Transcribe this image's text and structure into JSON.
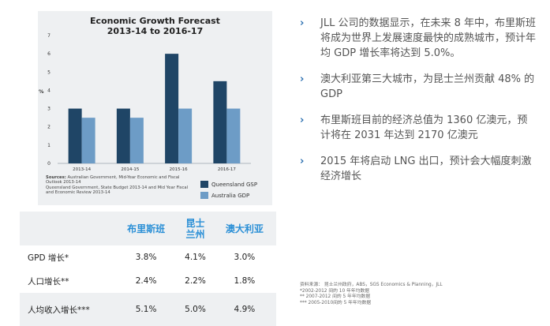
{
  "chart_data": {
    "type": "bar",
    "title_line1": "Economic Growth Forecast",
    "title_line2": "2013-14 to 2016-17",
    "ylabel": "%",
    "ylim": [
      0,
      7
    ],
    "yticks": [
      "0",
      "1",
      "2",
      "3",
      "4",
      "5",
      "6",
      "7"
    ],
    "categories": [
      "2013-14",
      "2014-15",
      "2015-16",
      "2016-17"
    ],
    "series": [
      {
        "name": "Queensland GSP",
        "values": [
          3,
          3,
          6,
          4.5
        ],
        "color": "#1f4566"
      },
      {
        "name": "Australia GDP",
        "values": [
          2.5,
          2.5,
          3,
          3
        ],
        "color": "#6d9cc6"
      }
    ],
    "legend_position": "right-bottom",
    "sources": {
      "label": "Sources:",
      "line1": "Australian Government, Mid-Year Economic and Fiscal Outlook 2013-14",
      "line2": "Queensland Government, State Budget 2013-14 and Mid Year Fiscal and Economic Review 2013-14"
    }
  },
  "table": {
    "headers": [
      "",
      "布里斯班",
      "昆士\n兰州",
      "澳大利亚"
    ],
    "rows": [
      {
        "label": "GPD 增长*",
        "values": [
          "3.8%",
          "4.1%",
          "3.0%"
        ]
      },
      {
        "label": "人口增长**",
        "values": [
          "2.4%",
          "2.2%",
          "1.8%"
        ]
      },
      {
        "label": "人均收入增长***",
        "values": [
          "5.1%",
          "5.0%",
          "4.9%"
        ]
      }
    ]
  },
  "bullets": [
    "JLL 公司的数据显示，在未来 8 年中，布里斯班将成为世界上发展速度最快的成熟城市，预计年均 GDP 增长率将达到 5.0%。",
    "澳大利亚第三大城市，为昆士兰州贡献 48% 的 GDP",
    "布里斯班目前的经济总值为 1360 亿澳元，预计将在 2031 年达到 2170 亿澳元",
    "2015 年将启动 LNG 出口，预计会大幅度刺激经济增长"
  ],
  "bullet_marker": "›",
  "footnotes": {
    "source": "资料来源： 昆士兰州政府，ABS，SGS Economics & Planning，JLL",
    "note1": "*2002-2012 间的 10 年年均数据",
    "note2": "** 2007-2012 间的 5 年年均数据",
    "note3": "*** 2005-2010间的 5 年年均数据"
  },
  "colors": {
    "accent_blue": "#2a8fd6",
    "panel_bg": "#eef0f2",
    "bullet_mark": "#2a6fb0"
  }
}
